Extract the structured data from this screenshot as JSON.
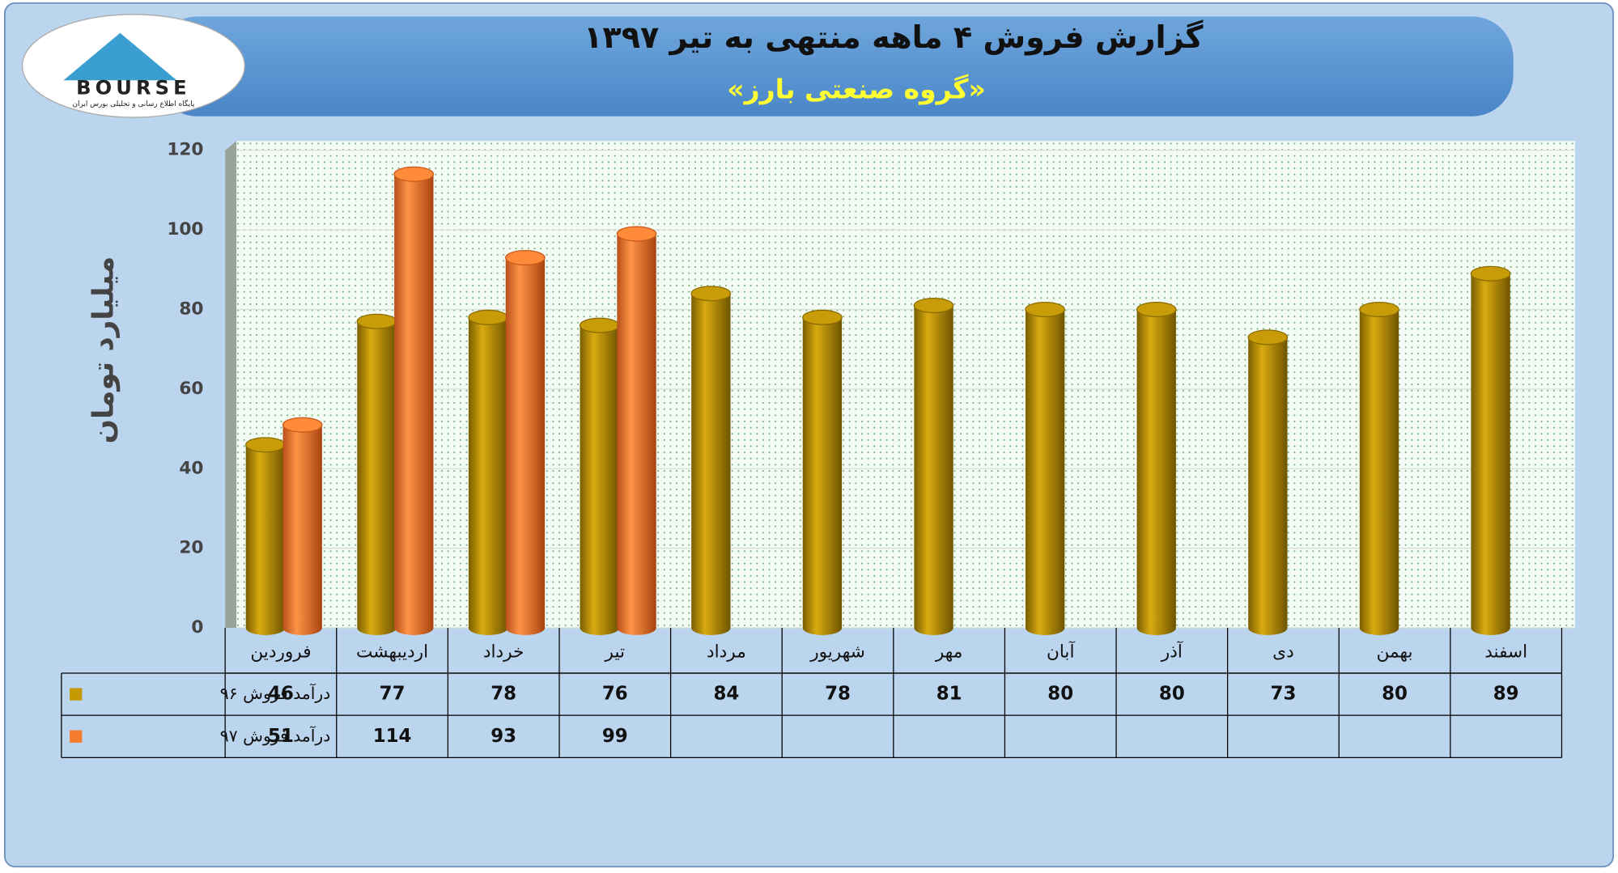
{
  "logo": {
    "text": "BOURSE",
    "subtitle": "پایگاه اطلاع رسانی و تحلیلی بورس ایران"
  },
  "chart_data": {
    "type": "bar",
    "title": "گزارش فروش ۴ ماهه منتهی به تیر ۱۳۹۷",
    "subtitle": "«گروه صنعتی بارز»",
    "y_label": "میلیارد تومان",
    "categories": [
      "فروردین",
      "اردیبهشت",
      "خرداد",
      "تیر",
      "مرداد",
      "شهریور",
      "مهر",
      "آبان",
      "آذر",
      "دی",
      "بهمن",
      "اسفند"
    ],
    "series": [
      {
        "name": "درآمد فروش ۹۶",
        "color": "#c49a00",
        "values": [
          46,
          77,
          78,
          76,
          84,
          78,
          81,
          80,
          80,
          73,
          80,
          89
        ]
      },
      {
        "name": "درآمد فروش ۹۷",
        "color": "#f47c2c",
        "values": [
          51,
          114,
          93,
          99,
          null,
          null,
          null,
          null,
          null,
          null,
          null,
          null
        ]
      }
    ],
    "ylim": [
      0,
      120
    ],
    "yticks": [
      0,
      20,
      40,
      60,
      80,
      100,
      120
    ],
    "grid": true
  }
}
